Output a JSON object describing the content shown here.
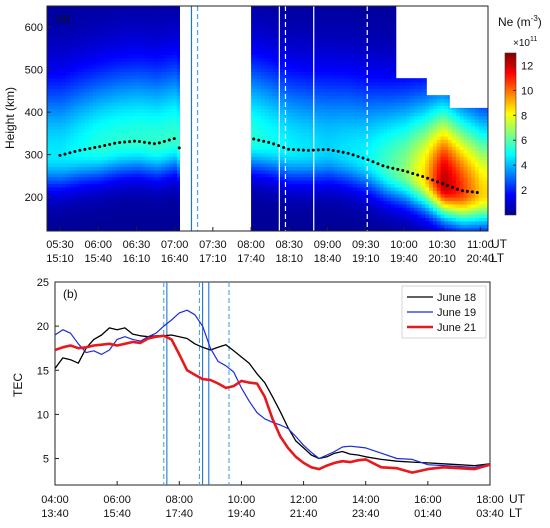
{
  "chart_data": [
    {
      "type": "heatmap",
      "panel_label": "(a)",
      "ylabel": "Height (km)",
      "ylim": [
        120,
        650
      ],
      "yticks": [
        200,
        300,
        400,
        500,
        600
      ],
      "x_ticks_ut": [
        "05:30",
        "06:00",
        "06:30",
        "07:00",
        "07:30",
        "08:00",
        "08:30",
        "09:00",
        "09:30",
        "10:00",
        "10:30",
        "11:00"
      ],
      "x_ticks_lt": [
        "15:10",
        "15:40",
        "16:10",
        "16:40",
        "17:10",
        "17:40",
        "18:10",
        "18:40",
        "19:10",
        "19:40",
        "20:10",
        "20:40"
      ],
      "x_unit_ut": "UT",
      "x_unit_lt": "LT",
      "colorbar": {
        "label": "Ne (m",
        "label_sup": "-3",
        "label_close": ")",
        "multiplier": "×10",
        "multiplier_sup": "11",
        "range": [
          0,
          13
        ],
        "ticks": [
          2,
          4,
          6,
          8,
          10,
          12
        ],
        "colors": [
          "#00008f",
          "#0000ff",
          "#0080ff",
          "#00ffff",
          "#80ff80",
          "#ffff00",
          "#ff8000",
          "#ff0000",
          "#800000"
        ]
      },
      "data_gap_ut": [
        7.07,
        8.0
      ],
      "vertical_lines": [
        {
          "ut": 7.22,
          "color": "#1f77d4",
          "style": "solid"
        },
        {
          "ut": 7.3,
          "color": "#4da3e8",
          "style": "dashed"
        },
        {
          "ut": 8.37,
          "color": "#ffffff",
          "style": "solid"
        },
        {
          "ut": 8.45,
          "color": "#ffffff",
          "style": "dashed"
        },
        {
          "ut": 8.82,
          "color": "#ffffff",
          "style": "solid"
        },
        {
          "ut": 9.52,
          "color": "#ffffff",
          "style": "dashed"
        }
      ],
      "hmF2": {
        "ut": [
          5.5,
          5.75,
          6.0,
          6.25,
          6.5,
          6.75,
          7.0,
          7.07,
          8.0,
          8.25,
          8.5,
          8.75,
          9.0,
          9.25,
          9.5,
          9.75,
          10.0,
          10.25,
          10.5,
          10.75,
          11.0
        ],
        "height": [
          298,
          310,
          318,
          328,
          332,
          325,
          338,
          312,
          338,
          328,
          312,
          310,
          312,
          304,
          290,
          272,
          262,
          248,
          232,
          215,
          210
        ]
      },
      "peak_density": {
        "ut": [
          5.5,
          6.0,
          6.5,
          7.0,
          8.0,
          8.5,
          9.0,
          9.5,
          10.0,
          10.25,
          10.5,
          10.75,
          11.0
        ],
        "ne": [
          4.5,
          5.2,
          5.3,
          5.4,
          5.2,
          4.6,
          4.2,
          4.7,
          6.5,
          8.5,
          12.3,
          10.5,
          8.5
        ]
      }
    },
    {
      "type": "line",
      "panel_label": "(b)",
      "ylabel": "TEC",
      "ylim": [
        2,
        25
      ],
      "yticks": [
        5,
        10,
        15,
        20,
        25
      ],
      "xlim": [
        4,
        18
      ],
      "x_ticks_ut": [
        "04:00",
        "06:00",
        "08:00",
        "10:00",
        "12:00",
        "14:00",
        "16:00",
        "18:00"
      ],
      "x_ticks_lt": [
        "13:40",
        "15:40",
        "17:40",
        "19:40",
        "21:40",
        "23:40",
        "01:40",
        "03:40"
      ],
      "x_unit_ut": "UT",
      "x_unit_lt": "LT",
      "vertical_lines": [
        {
          "ut": 7.5,
          "color": "#4da3e8",
          "style": "dashed"
        },
        {
          "ut": 7.6,
          "color": "#1f77d4",
          "style": "solid"
        },
        {
          "ut": 8.65,
          "color": "#4da3e8",
          "style": "dashed"
        },
        {
          "ut": 8.75,
          "color": "#1f77d4",
          "style": "solid"
        },
        {
          "ut": 8.95,
          "color": "#1f77d4",
          "style": "solid"
        },
        {
          "ut": 9.6,
          "color": "#4da3e8",
          "style": "dashed"
        }
      ],
      "series": [
        {
          "name": "June 18",
          "color": "#000000",
          "width": 1.3,
          "x": [
            4.0,
            4.25,
            4.5,
            4.75,
            5.0,
            5.25,
            5.5,
            5.75,
            6.0,
            6.25,
            6.5,
            6.75,
            7.0,
            7.25,
            7.5,
            7.75,
            8.0,
            8.25,
            8.5,
            8.75,
            9.0,
            9.25,
            9.5,
            9.75,
            10.0,
            10.25,
            10.5,
            10.75,
            11.0,
            11.25,
            11.5,
            11.75,
            12.0,
            12.25,
            12.5,
            12.75,
            13.0,
            13.25,
            13.5,
            13.75,
            14.0,
            14.5,
            15.0,
            15.5,
            16.0,
            16.5,
            17.0,
            17.5,
            18.0
          ],
          "y": [
            15.2,
            16.4,
            16.2,
            15.8,
            17.5,
            18.5,
            19.0,
            19.8,
            19.6,
            19.8,
            19.1,
            18.9,
            18.8,
            18.9,
            18.9,
            19.0,
            18.8,
            18.6,
            18.0,
            17.6,
            17.3,
            17.6,
            17.9,
            17.2,
            16.5,
            15.8,
            14.6,
            13.6,
            12.0,
            10.3,
            8.5,
            7.0,
            6.2,
            5.4,
            5.0,
            5.2,
            5.6,
            5.8,
            5.5,
            5.4,
            5.2,
            4.9,
            4.7,
            4.6,
            4.5,
            4.4,
            4.3,
            4.2,
            4.4
          ]
        },
        {
          "name": "June 19",
          "color": "#1f2bd9",
          "width": 1.2,
          "x": [
            4.0,
            4.25,
            4.5,
            4.75,
            5.0,
            5.25,
            5.5,
            5.75,
            6.0,
            6.25,
            6.5,
            6.75,
            7.0,
            7.25,
            7.5,
            7.75,
            8.0,
            8.25,
            8.5,
            8.75,
            9.0,
            9.25,
            9.5,
            9.75,
            10.0,
            10.25,
            10.5,
            10.75,
            11.0,
            11.25,
            11.5,
            11.75,
            12.0,
            12.25,
            12.5,
            12.75,
            13.0,
            13.25,
            13.5,
            13.75,
            14.0,
            14.5,
            15.0,
            15.5,
            16.0,
            16.5,
            17.0,
            17.5,
            18.0
          ],
          "y": [
            19.0,
            19.6,
            19.2,
            18.0,
            17.0,
            17.2,
            16.8,
            17.3,
            18.5,
            18.8,
            18.5,
            18.3,
            18.8,
            19.2,
            20.0,
            20.7,
            21.5,
            21.8,
            21.3,
            20.0,
            17.5,
            16.0,
            15.5,
            14.8,
            13.0,
            11.5,
            10.2,
            9.5,
            9.1,
            8.8,
            8.4,
            7.5,
            6.5,
            5.7,
            5.0,
            5.4,
            5.8,
            6.3,
            6.4,
            6.3,
            6.2,
            5.6,
            5.0,
            4.9,
            4.3,
            4.2,
            4.1,
            4.0,
            4.4
          ]
        },
        {
          "name": "June 21",
          "color": "#e8191c",
          "width": 2.6,
          "x": [
            4.0,
            4.25,
            4.5,
            4.75,
            5.0,
            5.25,
            5.5,
            5.75,
            6.0,
            6.25,
            6.5,
            6.75,
            7.0,
            7.25,
            7.5,
            7.75,
            8.0,
            8.25,
            8.5,
            8.75,
            9.0,
            9.25,
            9.5,
            9.75,
            10.0,
            10.25,
            10.5,
            10.75,
            11.0,
            11.25,
            11.5,
            11.75,
            12.0,
            12.25,
            12.5,
            12.75,
            13.0,
            13.25,
            13.5,
            13.75,
            14.0,
            14.5,
            15.0,
            15.5,
            16.0,
            16.5,
            17.0,
            17.5,
            18.0
          ],
          "y": [
            17.3,
            17.6,
            17.8,
            17.5,
            17.6,
            17.8,
            17.9,
            18.0,
            17.8,
            18.0,
            18.2,
            18.1,
            18.6,
            18.8,
            18.9,
            18.5,
            16.8,
            15.0,
            14.5,
            14.0,
            13.9,
            13.5,
            13.0,
            13.2,
            13.8,
            13.6,
            13.5,
            12.0,
            9.5,
            7.5,
            6.2,
            5.2,
            4.5,
            4.0,
            3.8,
            4.2,
            4.5,
            4.7,
            4.6,
            4.8,
            4.9,
            4.0,
            3.9,
            3.4,
            3.8,
            4.0,
            3.9,
            3.8,
            4.3
          ]
        }
      ],
      "legend": "top-right"
    }
  ]
}
